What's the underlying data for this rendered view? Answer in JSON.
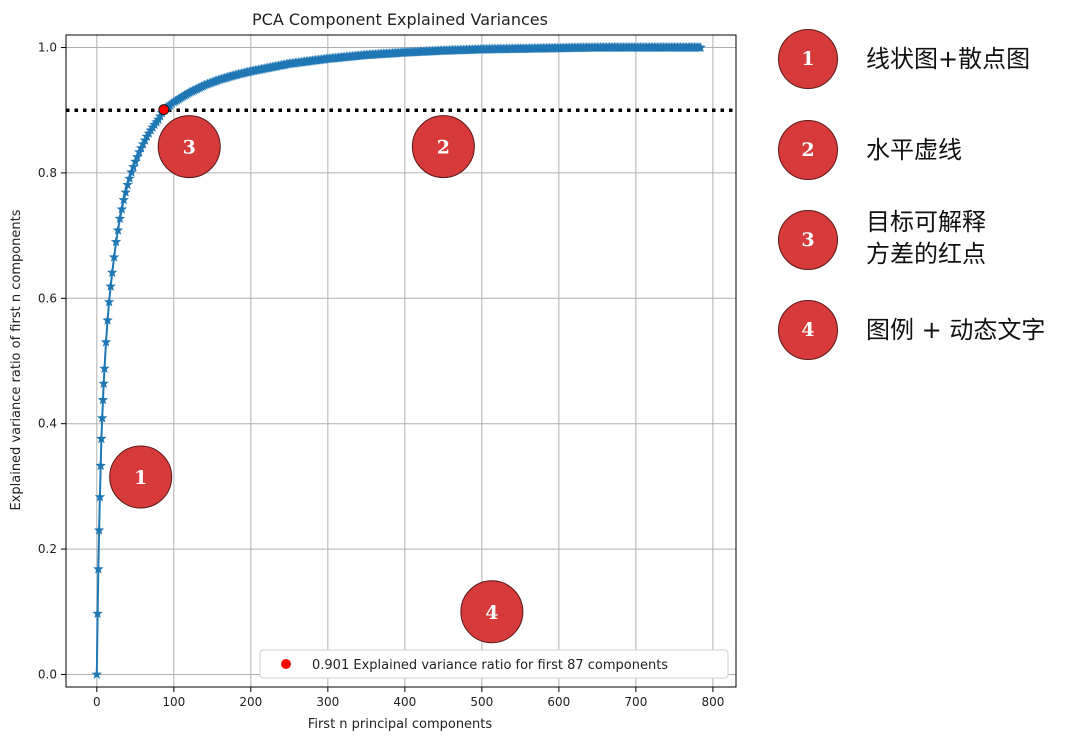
{
  "chart_data": {
    "type": "line",
    "title": "PCA Component Explained Variances",
    "xlabel": "First n principal components",
    "ylabel": "Explained variance ratio of first n components",
    "xlim": [
      -40,
      830
    ],
    "ylim": [
      -0.02,
      1.02
    ],
    "xticks": [
      0,
      100,
      200,
      300,
      400,
      500,
      600,
      700,
      800
    ],
    "yticks": [
      0.0,
      0.2,
      0.4,
      0.6,
      0.8,
      1.0
    ],
    "xtick_labels": [
      "0",
      "100",
      "200",
      "300",
      "400",
      "500",
      "600",
      "700",
      "800"
    ],
    "ytick_labels": [
      "0.0",
      "0.2",
      "0.4",
      "0.6",
      "0.8",
      "1.0"
    ],
    "grid": true,
    "series": [
      {
        "marker": "star",
        "color": "#1f77b4",
        "x": [
          0,
          1,
          2,
          3,
          4,
          5,
          6,
          7,
          8,
          9,
          10,
          12,
          14,
          16,
          18,
          20,
          25,
          30,
          35,
          40,
          45,
          50,
          55,
          60,
          65,
          70,
          75,
          80,
          87,
          95,
          100,
          120,
          140,
          160,
          180,
          200,
          250,
          300,
          350,
          400,
          450,
          500,
          550,
          600,
          650,
          700,
          750,
          784
        ],
        "y": [
          0.0,
          0.097,
          0.168,
          0.23,
          0.283,
          0.333,
          0.376,
          0.409,
          0.438,
          0.464,
          0.488,
          0.53,
          0.565,
          0.594,
          0.619,
          0.641,
          0.69,
          0.727,
          0.757,
          0.781,
          0.801,
          0.818,
          0.833,
          0.846,
          0.858,
          0.868,
          0.877,
          0.885,
          0.901,
          0.908,
          0.913,
          0.928,
          0.94,
          0.949,
          0.956,
          0.962,
          0.974,
          0.982,
          0.988,
          0.992,
          0.995,
          0.997,
          0.998,
          0.999,
          1.0,
          1.0,
          1.0,
          1.0
        ]
      }
    ],
    "hline": {
      "y": 0.9,
      "style": "dotted",
      "color": "#000000"
    },
    "highlight_point": {
      "x": 87,
      "y": 0.901,
      "color": "#ff0000"
    },
    "legend": {
      "placement": "lower-right",
      "label": "0.901 Explained variance ratio for first 87 components"
    },
    "markers": [
      {
        "label": "1",
        "x": 57,
        "y": 0.315
      },
      {
        "label": "2",
        "x": 450,
        "y": 0.842
      },
      {
        "label": "3",
        "x": 120,
        "y": 0.842
      },
      {
        "label": "4",
        "x": 513,
        "y": 0.1
      }
    ]
  },
  "annotation_legend": [
    {
      "number": "1",
      "text": "线状图+散点图"
    },
    {
      "number": "2",
      "text": "水平虚线"
    },
    {
      "number": "3",
      "text": "目标可解释\n方差的红点"
    },
    {
      "number": "4",
      "text": "图例 + 动态文字"
    }
  ],
  "colors": {
    "accent": "#d63a3a",
    "line": "#1f77b4",
    "point": "#ff0000"
  }
}
